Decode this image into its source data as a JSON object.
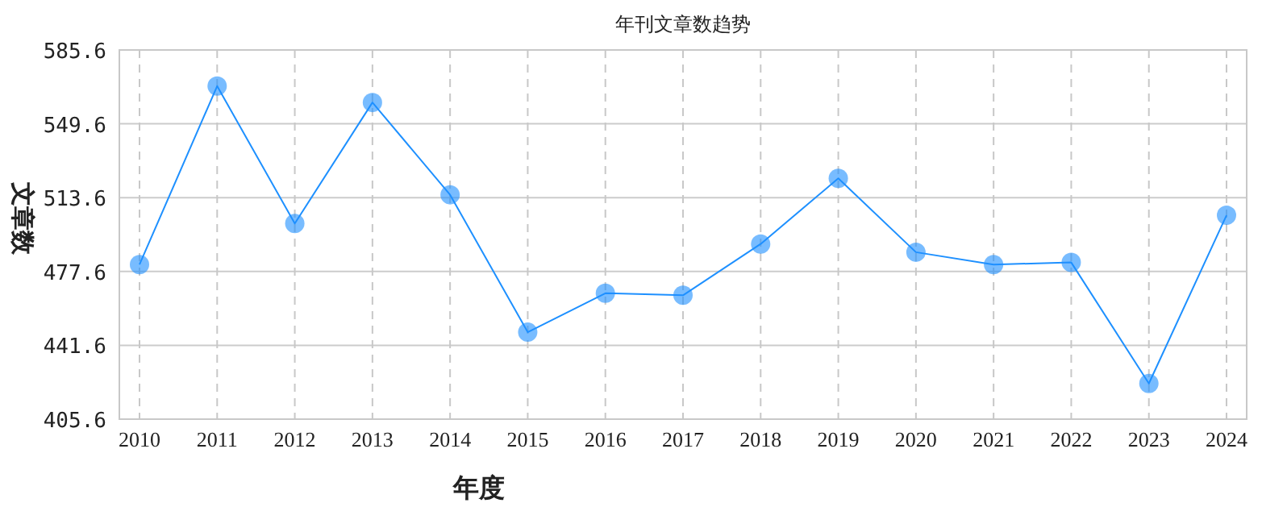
{
  "chart_data": {
    "type": "line",
    "title": "年刊文章数趋势",
    "xlabel": "年度",
    "ylabel": "文章数",
    "categories": [
      "2010",
      "2011",
      "2012",
      "2013",
      "2014",
      "2015",
      "2016",
      "2017",
      "2018",
      "2019",
      "2020",
      "2021",
      "2022",
      "2023",
      "2024"
    ],
    "series": [
      {
        "color": "#1e90ff",
        "values": [
          481,
          568,
          501,
          560,
          515,
          448,
          467,
          466,
          491,
          523,
          487,
          481,
          482,
          423,
          505
        ]
      }
    ],
    "ylim": [
      405.6,
      585.6
    ],
    "yticks": [
      405.6,
      441.6,
      477.6,
      513.6,
      549.6,
      585.6
    ],
    "grid": true,
    "marker": "circle",
    "line_style": "solid"
  }
}
